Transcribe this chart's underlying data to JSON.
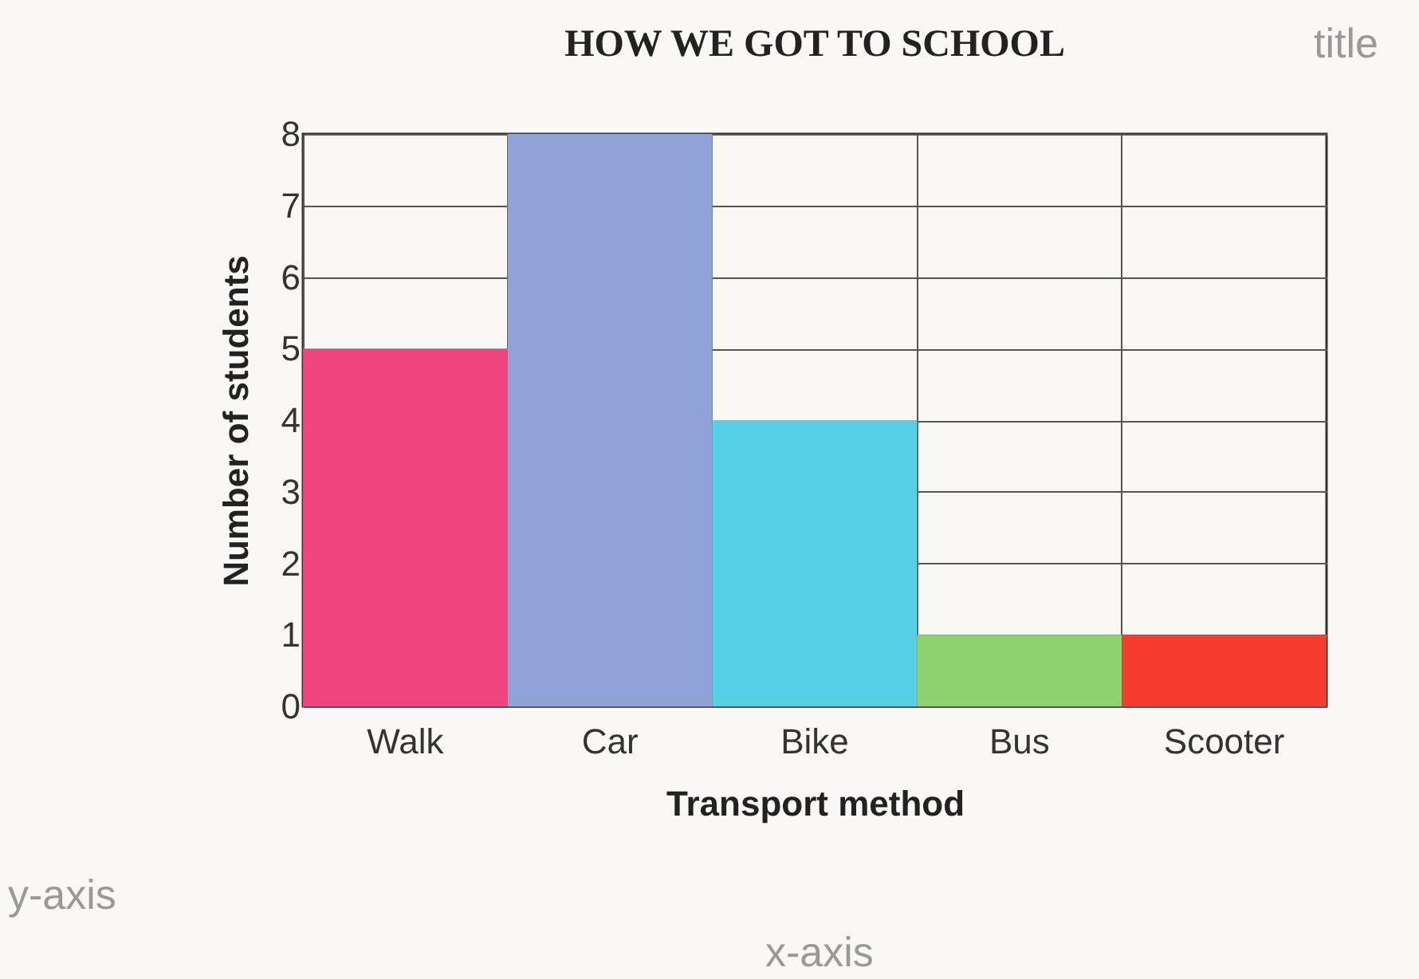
{
  "chart_data": {
    "type": "bar",
    "title": "HOW WE GOT TO SCHOOL",
    "xlabel": "Transport method",
    "ylabel": "Number of students",
    "categories": [
      "Walk",
      "Car",
      "Bike",
      "Bus",
      "Scooter"
    ],
    "values": [
      5,
      8,
      4,
      1,
      1
    ],
    "colors": [
      "#f0457e",
      "#8fa3d8",
      "#55cfe3",
      "#8ed16f",
      "#f63c2e"
    ],
    "ylim": [
      0,
      8
    ],
    "yticks": [
      0,
      1,
      2,
      3,
      4,
      5,
      6,
      7,
      8
    ],
    "grid": true,
    "legend": false,
    "annotations": [
      "title",
      "y-axis",
      "x-axis"
    ]
  }
}
